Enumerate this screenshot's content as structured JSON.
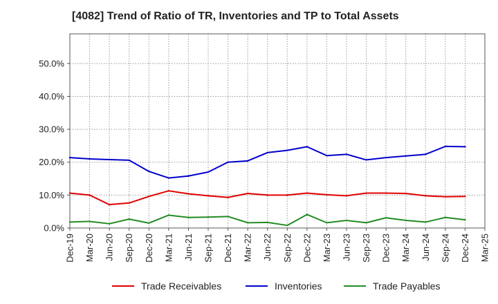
{
  "chart_data": {
    "type": "line",
    "title": "[4082]  Trend of Ratio of TR, Inventories and TP to Total Assets",
    "xlabel": "",
    "ylabel": "",
    "x_ticks": [
      "Dec-19",
      "Mar-20",
      "Jun-20",
      "Sep-20",
      "Dec-20",
      "Mar-21",
      "Jun-21",
      "Sep-21",
      "Dec-21",
      "Mar-22",
      "Jun-22",
      "Sep-22",
      "Dec-22",
      "Mar-23",
      "Jun-23",
      "Sep-23",
      "Dec-23",
      "Mar-24",
      "Jun-24",
      "Sep-24",
      "Dec-24",
      "Mar-25"
    ],
    "y_ticks": [
      "0.0%",
      "10.0%",
      "20.0%",
      "30.0%",
      "40.0%",
      "50.0%"
    ],
    "y_tick_values": [
      0,
      10,
      20,
      30,
      40,
      50
    ],
    "ylim": [
      0,
      59
    ],
    "grid": true,
    "legend_position": "bottom",
    "series": [
      {
        "name": "Trade Receivables",
        "color": "#e00000",
        "x": [
          "Dec-19",
          "Mar-20",
          "Jun-20",
          "Sep-20",
          "Dec-20",
          "Mar-21",
          "Jun-21",
          "Sep-21",
          "Dec-21",
          "Mar-22",
          "Jun-22",
          "Sep-22",
          "Dec-22",
          "Mar-23",
          "Jun-23",
          "Sep-23",
          "Dec-23",
          "Mar-24",
          "Jun-24",
          "Sep-24",
          "Dec-24"
        ],
        "values": [
          10.6,
          10.0,
          7.1,
          7.6,
          9.6,
          11.3,
          10.4,
          9.8,
          9.3,
          10.5,
          10.0,
          10.0,
          10.6,
          10.1,
          9.8,
          10.6,
          10.6,
          10.5,
          9.8,
          9.5,
          9.6
        ]
      },
      {
        "name": "Inventories",
        "color": "#0000cc",
        "x": [
          "Dec-19",
          "Mar-20",
          "Jun-20",
          "Sep-20",
          "Dec-20",
          "Mar-21",
          "Jun-21",
          "Sep-21",
          "Dec-21",
          "Mar-22",
          "Jun-22",
          "Sep-22",
          "Dec-22",
          "Mar-23",
          "Jun-23",
          "Sep-23",
          "Dec-23",
          "Mar-24",
          "Jun-24",
          "Sep-24",
          "Dec-24"
        ],
        "values": [
          21.4,
          21.0,
          20.8,
          20.6,
          17.2,
          15.2,
          15.8,
          17.0,
          20.0,
          20.4,
          22.9,
          23.6,
          24.7,
          22.0,
          22.4,
          20.7,
          21.4,
          21.9,
          22.4,
          24.8,
          24.7
        ]
      },
      {
        "name": "Trade Payables",
        "color": "#228b22",
        "x": [
          "Dec-19",
          "Mar-20",
          "Jun-20",
          "Sep-20",
          "Dec-20",
          "Mar-21",
          "Jun-21",
          "Sep-21",
          "Dec-21",
          "Mar-22",
          "Jun-22",
          "Sep-22",
          "Dec-22",
          "Mar-23",
          "Jun-23",
          "Sep-23",
          "Dec-23",
          "Mar-24",
          "Jun-24",
          "Sep-24",
          "Dec-24"
        ],
        "values": [
          1.8,
          2.0,
          1.3,
          2.7,
          1.5,
          3.9,
          3.2,
          3.3,
          3.5,
          1.6,
          1.7,
          0.8,
          4.1,
          1.6,
          2.3,
          1.6,
          3.1,
          2.3,
          1.8,
          3.2,
          2.5
        ]
      }
    ]
  }
}
